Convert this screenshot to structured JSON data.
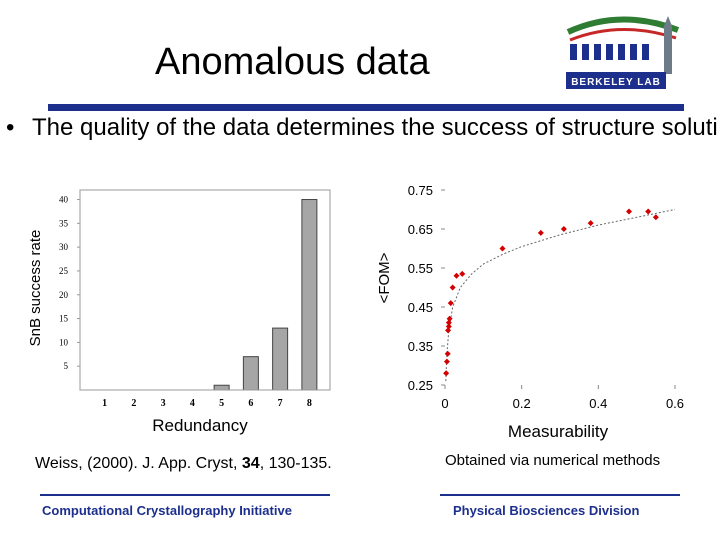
{
  "slide": {
    "title": "Anomalous data",
    "bullet": "The quality of the data determines the success of structure soluti",
    "bullet_glyph": "•",
    "citation": {
      "authors": "Weiss, (2000). J. App. Cryst, ",
      "volume": "34",
      "pages": ", 130-135."
    },
    "method_note": "Obtained via numerical methods",
    "footer_left": "Computational Crystallography Initiative",
    "footer_right": "Physical Biosciences Division",
    "logo_text": "BERKELEY LAB"
  },
  "colors": {
    "rule": "#1c2f8c",
    "bar_fill": "#a6a6a6",
    "point_red": "#d40000",
    "logo_green": "#2e7d32",
    "logo_red": "#c62828"
  },
  "chart_data": [
    {
      "type": "bar",
      "title": "",
      "xlabel": "Redundancy",
      "ylabel": "SnB success rate",
      "categories": [
        "1",
        "2",
        "3",
        "4",
        "5",
        "6",
        "7",
        "8"
      ],
      "values": [
        0,
        0,
        0,
        0,
        1,
        7,
        13,
        40
      ],
      "ylim": [
        0,
        42
      ],
      "yticks": [
        5,
        10,
        15,
        20,
        25,
        30,
        35,
        40
      ],
      "ytick_labels": [
        "5",
        "10",
        "15",
        "20",
        "25",
        "30",
        "35",
        "40"
      ]
    },
    {
      "type": "scatter",
      "title": "",
      "xlabel": "Measurability",
      "ylabel": "<FOM>",
      "xlim": [
        0,
        0.6
      ],
      "ylim": [
        0.25,
        0.75
      ],
      "xticks": [
        0,
        0.2,
        0.4,
        0.6
      ],
      "xtick_labels": [
        "0",
        "0.2",
        "0.4",
        "0.6"
      ],
      "yticks": [
        0.25,
        0.35,
        0.45,
        0.55,
        0.65,
        0.75
      ],
      "ytick_labels": [
        "0.25",
        "0.35",
        "0.45",
        "0.55",
        "0.65",
        "0.75"
      ],
      "points": [
        [
          0.003,
          0.28
        ],
        [
          0.005,
          0.31
        ],
        [
          0.007,
          0.33
        ],
        [
          0.008,
          0.39
        ],
        [
          0.01,
          0.4
        ],
        [
          0.01,
          0.41
        ],
        [
          0.012,
          0.42
        ],
        [
          0.015,
          0.46
        ],
        [
          0.02,
          0.5
        ],
        [
          0.03,
          0.53
        ],
        [
          0.045,
          0.535
        ],
        [
          0.15,
          0.6
        ],
        [
          0.25,
          0.64
        ],
        [
          0.31,
          0.65
        ],
        [
          0.38,
          0.665
        ],
        [
          0.48,
          0.695
        ],
        [
          0.53,
          0.695
        ],
        [
          0.55,
          0.68
        ]
      ],
      "fit_curve": [
        [
          0.002,
          0.26
        ],
        [
          0.005,
          0.33
        ],
        [
          0.01,
          0.39
        ],
        [
          0.02,
          0.45
        ],
        [
          0.04,
          0.5
        ],
        [
          0.07,
          0.535
        ],
        [
          0.1,
          0.56
        ],
        [
          0.15,
          0.585
        ],
        [
          0.2,
          0.605
        ],
        [
          0.3,
          0.635
        ],
        [
          0.4,
          0.66
        ],
        [
          0.5,
          0.68
        ],
        [
          0.6,
          0.7
        ]
      ]
    }
  ]
}
